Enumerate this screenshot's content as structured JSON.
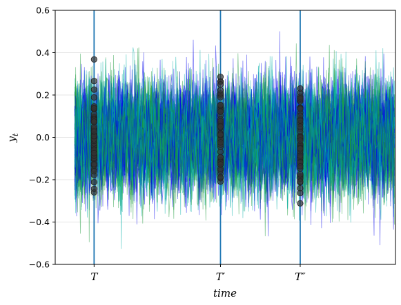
{
  "chart_data": {
    "type": "line",
    "title": "",
    "xlabel": "time",
    "ylabel": "y",
    "ylabel_subscript": "t",
    "ylim": [
      -0.6,
      0.6
    ],
    "yticks": [
      -0.6,
      -0.4,
      -0.2,
      0.0,
      0.2,
      0.4,
      0.6
    ],
    "ytick_labels": [
      "−0.6",
      "−0.4",
      "−0.2",
      "0.0",
      "0.2",
      "0.4",
      "0.6"
    ],
    "xlim": [
      -20,
      330
    ],
    "x_markers": [
      {
        "label": "T",
        "prime": "",
        "x": 20
      },
      {
        "label": "T",
        "prime": "′",
        "x": 150
      },
      {
        "label": "T",
        "prime": "″",
        "x": 232
      }
    ],
    "grid": "horizontal",
    "legend": "none",
    "series_count": 60,
    "series_length": 330,
    "series_std": 0.13,
    "colors": {
      "series": [
        "#0000ee",
        "#00b0a8",
        "#1a9a3a"
      ],
      "marker_line": "#1f77b4",
      "dots": "#333333"
    }
  }
}
